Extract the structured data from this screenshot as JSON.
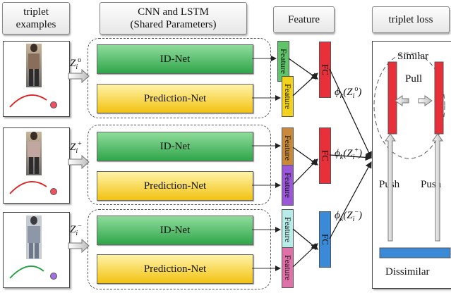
{
  "headers": {
    "triplet": [
      "triplet",
      "examples"
    ],
    "cnn": [
      "CNN and LSTM",
      "(Shared Parameters)"
    ],
    "feature": "Feature",
    "loss": "triplet loss"
  },
  "rows": [
    {
      "input": {
        "var": "Z",
        "sub": "i",
        "sup": "o"
      },
      "id_net": "ID-Net",
      "pred_net": "Prediction-Net",
      "feature": "Feature",
      "fc": "FC",
      "embedding": {
        "fn": "ϕ",
        "fsub": "k",
        "var": "Z",
        "sub": "i",
        "sup": "o"
      },
      "colors": {
        "f1": "#5fc46a",
        "f2": "#f2d21a",
        "fc": "#e8303a",
        "traj": "#e02020",
        "dot": "#f05060"
      }
    },
    {
      "input": {
        "var": "Z",
        "sub": "i",
        "sup": "+"
      },
      "id_net": "ID-Net",
      "pred_net": "Prediction-Net",
      "feature": "Feature",
      "fc": "FC",
      "embedding": {
        "fn": "ϕ",
        "fsub": "k",
        "var": "Z",
        "sub": "i",
        "sup": "+"
      },
      "colors": {
        "f1": "#c88a3a",
        "f2": "#9a58d8",
        "fc": "#e8303a",
        "traj": "#e02020",
        "dot": "#f05060"
      }
    },
    {
      "input": {
        "var": "Z",
        "sub": "i",
        "sup": "−"
      },
      "id_net": "ID-Net",
      "pred_net": "Prediction-Net",
      "feature": "Feature",
      "fc": "FC",
      "embedding": {
        "fn": "ϕ",
        "fsub": "k",
        "var": "Z",
        "sub": "i",
        "sup": "−"
      },
      "colors": {
        "f1": "#b8ece8",
        "f2": "#e070a8",
        "fc": "#3a8ad8",
        "traj": "#20a040",
        "dot": "#a070e0"
      }
    }
  ],
  "loss": {
    "similar": "Similar",
    "pull": "Pull",
    "push_left": "Push",
    "push_right": "Push",
    "dissimilar": "Dissimilar"
  },
  "colors": {
    "anchor_bar": "#e8303a",
    "neg_bar": "#3a8ad8"
  }
}
